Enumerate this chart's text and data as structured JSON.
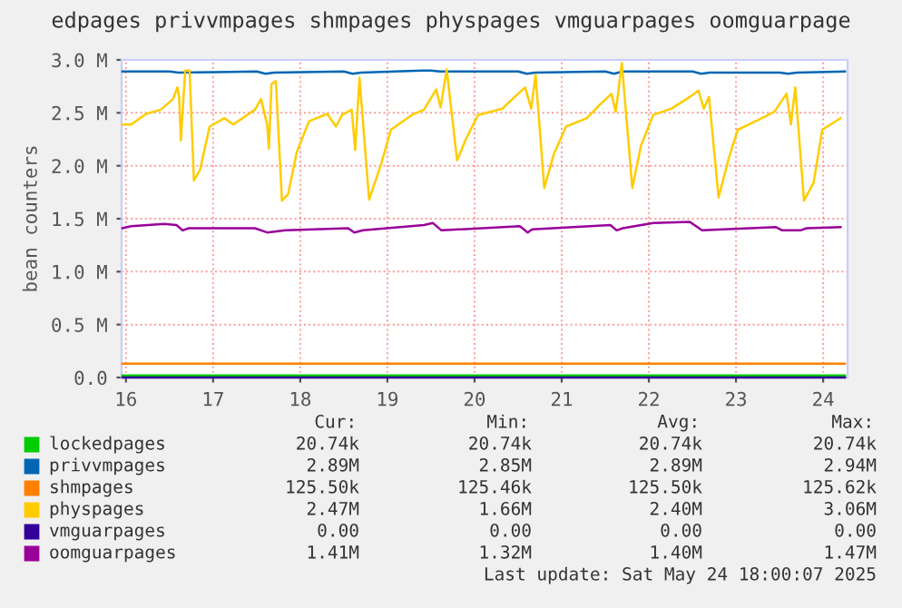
{
  "chart_data": {
    "type": "line",
    "title": "edpages privvmpages shmpages physpages vmguarpages oomguarpage",
    "ylabel": "bean counters",
    "xlim": [
      15.95,
      24.28
    ],
    "xticks": [
      16,
      17,
      18,
      19,
      20,
      21,
      22,
      23,
      24
    ],
    "ylim": [
      0,
      3.0
    ],
    "yticks": [
      {
        "value": 0,
        "label": "0.0"
      },
      {
        "value": 0.5,
        "label": "0.5 M"
      },
      {
        "value": 1.0,
        "label": "1.0 M"
      },
      {
        "value": 1.5,
        "label": "1.5 M"
      },
      {
        "value": 2.0,
        "label": "2.0 M"
      },
      {
        "value": 2.5,
        "label": "2.5 M"
      },
      {
        "value": 3.0,
        "label": "3.0 M"
      }
    ],
    "grid": true,
    "legend": "bottom",
    "marker": "none",
    "line_style": "solid",
    "series": [
      {
        "name": "lockedpages",
        "color": "#00cc00",
        "x": [
          15.96,
          24.25
        ],
        "values": [
          0.02,
          0.02
        ]
      },
      {
        "name": "privvmpages",
        "color": "#0066b3",
        "x": [
          15.96,
          16.5,
          16.6,
          17.5,
          17.6,
          17.7,
          18.5,
          18.6,
          18.7,
          19.4,
          19.5,
          19.6,
          20.5,
          20.6,
          20.7,
          21.5,
          21.6,
          21.7,
          22.5,
          22.6,
          22.7,
          23.5,
          23.6,
          23.7,
          24.25
        ],
        "values": [
          2.89,
          2.89,
          2.88,
          2.89,
          2.87,
          2.88,
          2.89,
          2.87,
          2.88,
          2.9,
          2.9,
          2.89,
          2.89,
          2.87,
          2.88,
          2.89,
          2.87,
          2.89,
          2.89,
          2.87,
          2.88,
          2.88,
          2.87,
          2.88,
          2.89
        ]
      },
      {
        "name": "shmpages",
        "color": "#ff8000",
        "x": [
          15.96,
          24.25
        ],
        "values": [
          0.13,
          0.13
        ]
      },
      {
        "name": "physpages",
        "color": "#ffcc00",
        "x": [
          15.96,
          16.06,
          16.23,
          16.4,
          16.54,
          16.59,
          16.61,
          16.63,
          16.68,
          16.73,
          16.78,
          16.85,
          16.96,
          17.13,
          17.23,
          17.34,
          17.48,
          17.55,
          17.62,
          17.64,
          17.67,
          17.72,
          17.79,
          17.86,
          17.96,
          18.1,
          18.31,
          18.41,
          18.48,
          18.59,
          18.63,
          18.68,
          18.79,
          18.93,
          19.04,
          19.28,
          19.42,
          19.56,
          19.61,
          19.68,
          19.8,
          19.9,
          20.04,
          20.32,
          20.46,
          20.58,
          20.65,
          20.7,
          20.8,
          20.91,
          21.05,
          21.29,
          21.43,
          21.57,
          21.62,
          21.69,
          21.81,
          21.91,
          22.05,
          22.26,
          22.47,
          22.57,
          22.63,
          22.69,
          22.8,
          22.92,
          23.02,
          23.3,
          23.44,
          23.58,
          23.63,
          23.68,
          23.78,
          23.89,
          23.99,
          24.2
        ],
        "values": [
          2.39,
          2.39,
          2.49,
          2.53,
          2.63,
          2.74,
          2.65,
          2.24,
          2.9,
          2.9,
          1.86,
          1.96,
          2.37,
          2.45,
          2.39,
          2.45,
          2.53,
          2.63,
          2.39,
          2.16,
          2.77,
          2.8,
          1.67,
          1.73,
          2.13,
          2.42,
          2.49,
          2.37,
          2.48,
          2.53,
          2.15,
          2.83,
          1.68,
          2.02,
          2.34,
          2.48,
          2.53,
          2.72,
          2.55,
          2.91,
          2.05,
          2.25,
          2.48,
          2.54,
          2.65,
          2.74,
          2.54,
          2.86,
          1.79,
          2.11,
          2.37,
          2.45,
          2.57,
          2.68,
          2.51,
          2.97,
          1.79,
          2.19,
          2.48,
          2.54,
          2.65,
          2.71,
          2.54,
          2.65,
          1.7,
          2.08,
          2.34,
          2.45,
          2.51,
          2.68,
          2.39,
          2.74,
          1.67,
          1.84,
          2.34,
          2.45
        ]
      },
      {
        "name": "vmguarpages",
        "color": "#330099",
        "x": [
          15.96,
          24.25
        ],
        "values": [
          0,
          0
        ]
      },
      {
        "name": "oomguarpages",
        "color": "#990099",
        "x": [
          15.96,
          16.06,
          16.44,
          16.58,
          16.65,
          16.72,
          17.48,
          17.62,
          17.83,
          18.55,
          18.62,
          18.72,
          19.42,
          19.52,
          19.62,
          20.52,
          20.61,
          20.66,
          21.56,
          21.63,
          21.7,
          22.05,
          22.47,
          22.61,
          23.46,
          23.53,
          23.74,
          23.81,
          24.2
        ],
        "values": [
          1.41,
          1.43,
          1.45,
          1.44,
          1.39,
          1.41,
          1.41,
          1.37,
          1.39,
          1.41,
          1.37,
          1.39,
          1.44,
          1.46,
          1.39,
          1.43,
          1.37,
          1.4,
          1.44,
          1.39,
          1.41,
          1.46,
          1.47,
          1.39,
          1.42,
          1.39,
          1.39,
          1.41,
          1.42
        ]
      }
    ],
    "annotations": [
      "Cur:",
      "Min:",
      "Avg:",
      "Max:",
      "20.74k",
      "20.74k",
      "20.74k",
      "20.74k",
      "2.89M",
      "2.85M",
      "2.89M",
      "2.94M",
      "125.50k",
      "125.46k",
      "125.50k",
      "125.62k",
      "2.47M",
      "1.66M",
      "2.40M",
      "3.06M",
      "0.00",
      "0.00",
      "0.00",
      "0.00",
      "1.41M",
      "1.32M",
      "1.40M",
      "1.47M",
      "Last update: Sat May 24 18:00:07 2025"
    ]
  }
}
